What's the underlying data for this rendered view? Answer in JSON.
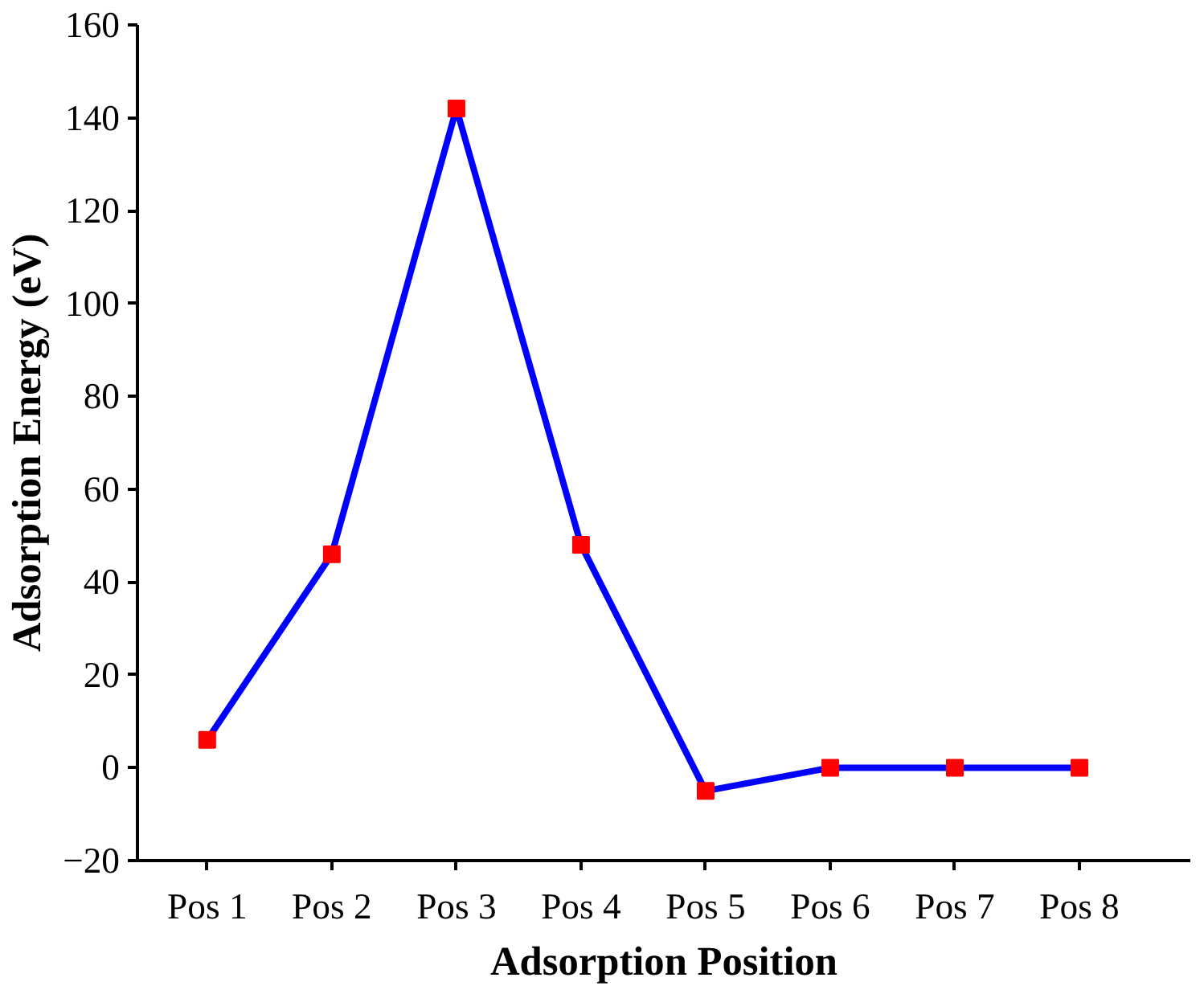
{
  "chart_data": {
    "type": "line",
    "xlabel": "Adsorption Position",
    "ylabel": "Adsorption Energy (eV)",
    "categories": [
      "Pos 1",
      "Pos 2",
      "Pos 3",
      "Pos 4",
      "Pos 5",
      "Pos 6",
      "Pos 7",
      "Pos 8"
    ],
    "series": [
      {
        "color": "#0000ff",
        "colors": [
          "#ff0000",
          "#ff0000",
          "#ff0000",
          "#ff0000",
          "#ff0000",
          "#ff0000",
          "#ff0000",
          "#ff0000"
        ],
        "values": [
          6,
          46,
          142,
          48,
          -5,
          0,
          0,
          0
        ]
      }
    ],
    "ylim": [
      -20,
      160
    ],
    "yticks": [
      -20,
      0,
      20,
      40,
      60,
      80,
      100,
      120,
      140,
      160
    ],
    "grid": false,
    "marker": "square",
    "line_style": "solid"
  }
}
